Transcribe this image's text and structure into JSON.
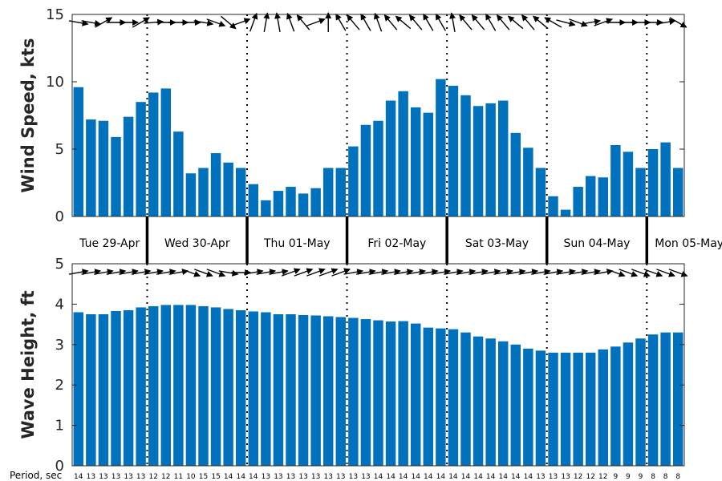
{
  "chart_data": [
    {
      "type": "bar",
      "ylabel": "Wind Speed, kts",
      "ylim": [
        0,
        15
      ],
      "yticks": [
        0,
        5,
        10,
        15
      ],
      "grid": false,
      "color": "#0072BD",
      "values": [
        9.6,
        7.2,
        7.1,
        5.9,
        7.4,
        8.5,
        9.2,
        9.5,
        6.3,
        3.2,
        3.6,
        4.7,
        4.0,
        3.6,
        2.4,
        1.2,
        1.9,
        2.2,
        1.7,
        2.1,
        3.6,
        3.6,
        5.2,
        6.8,
        7.1,
        8.6,
        9.3,
        8.1,
        7.7,
        10.2,
        9.7,
        9.0,
        8.2,
        8.4,
        8.6,
        6.2,
        5.1,
        3.6,
        1.5,
        0.5,
        2.2,
        3.0,
        2.9,
        5.3,
        4.8,
        3.6,
        5.0,
        5.5,
        3.6
      ],
      "direction_deg": [
        10,
        10,
        -30,
        0,
        0,
        -30,
        -5,
        0,
        0,
        0,
        10,
        20,
        40,
        -20,
        -70,
        -80,
        -100,
        -110,
        -130,
        -20,
        -90,
        -120,
        -130,
        -120,
        -110,
        -130,
        -140,
        -130,
        -120,
        -120,
        -100,
        -130,
        -130,
        -120,
        -130,
        -140,
        -130,
        -140,
        -150,
        15,
        20,
        -10,
        -20,
        0,
        0,
        0,
        0,
        -10,
        30
      ]
    },
    {
      "type": "bar",
      "ylabel": "Wave Height, ft",
      "ylim": [
        0,
        5
      ],
      "yticks": [
        0,
        1,
        2,
        3,
        4,
        5
      ],
      "grid": false,
      "color": "#0072BD",
      "values": [
        3.8,
        3.75,
        3.75,
        3.83,
        3.85,
        3.92,
        3.95,
        3.98,
        3.98,
        3.98,
        3.95,
        3.92,
        3.88,
        3.85,
        3.82,
        3.8,
        3.75,
        3.75,
        3.73,
        3.72,
        3.7,
        3.68,
        3.66,
        3.63,
        3.6,
        3.57,
        3.58,
        3.52,
        3.42,
        3.4,
        3.38,
        3.3,
        3.2,
        3.15,
        3.08,
        3.0,
        2.9,
        2.85,
        2.8,
        2.8,
        2.8,
        2.8,
        2.88,
        2.95,
        3.05,
        3.15,
        3.25,
        3.3,
        3.3
      ],
      "direction_deg": [
        -10,
        -10,
        -10,
        -10,
        -10,
        -10,
        -10,
        -10,
        -10,
        20,
        20,
        20,
        10,
        0,
        -10,
        -10,
        -10,
        -20,
        -20,
        -20,
        -20,
        -20,
        -10,
        -10,
        -10,
        -10,
        -10,
        -10,
        -10,
        -10,
        -10,
        -10,
        -10,
        -10,
        -10,
        -10,
        -10,
        -10,
        -10,
        -10,
        -10,
        -10,
        -10,
        20,
        20,
        20,
        20,
        20,
        20
      ]
    }
  ],
  "days": [
    "Tue 29-Apr",
    "Wed 30-Apr",
    "Thu 01-May",
    "Fri 02-May",
    "Sat 03-May",
    "Sun 04-May",
    "Mon 05-May"
  ],
  "period": {
    "label": "Period, sec",
    "values": [
      "14",
      "13",
      "13",
      "13",
      "13",
      "13",
      "12",
      "12",
      "11",
      "10",
      "15",
      "15",
      "14",
      "14",
      "14",
      "13",
      "13",
      "13",
      "13",
      "13",
      "13",
      "13",
      "13",
      "13",
      "14",
      "14",
      "14",
      "14",
      "14",
      "14",
      "14",
      "14",
      "14",
      "14",
      "14",
      "14",
      "14",
      "13",
      "13",
      "13",
      "12",
      "12",
      "12",
      "9",
      "9",
      "9",
      "8",
      "8",
      "8"
    ]
  }
}
